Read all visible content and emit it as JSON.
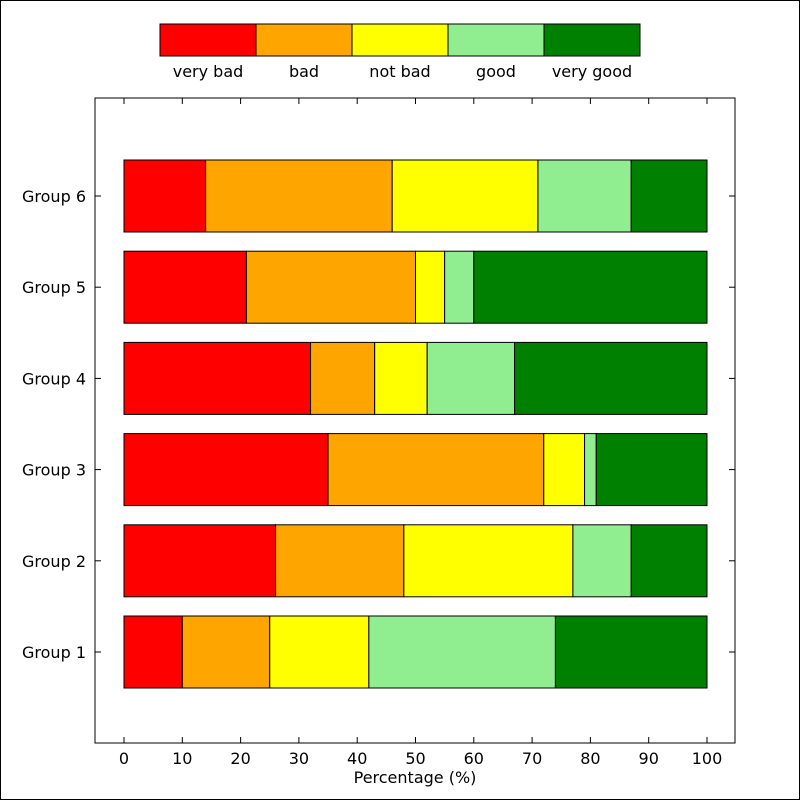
{
  "chart_data": {
    "type": "bar",
    "orientation": "horizontal",
    "stacked": true,
    "categories": [
      "Group 1",
      "Group 2",
      "Group 3",
      "Group 4",
      "Group 5",
      "Group 6"
    ],
    "series": [
      {
        "name": "very bad",
        "color": "#ff0000",
        "values": [
          10,
          26,
          35,
          32,
          21,
          14
        ]
      },
      {
        "name": "bad",
        "color": "#ffa500",
        "values": [
          15,
          22,
          37,
          11,
          29,
          32
        ]
      },
      {
        "name": "not bad",
        "color": "#ffff00",
        "values": [
          17,
          29,
          7,
          9,
          5,
          25
        ]
      },
      {
        "name": "good",
        "color": "#90ee90",
        "values": [
          32,
          10,
          2,
          15,
          5,
          16
        ]
      },
      {
        "name": "very good",
        "color": "#008000",
        "values": [
          26,
          13,
          19,
          33,
          40,
          13
        ]
      }
    ],
    "title": "",
    "xlabel": "Percentage (%)",
    "ylabel": "",
    "xlim": [
      0,
      100
    ],
    "xticks": [
      "0",
      "10",
      "20",
      "30",
      "40",
      "50",
      "60",
      "70",
      "80",
      "90",
      "100"
    ],
    "grid": false,
    "legend_position": "top"
  }
}
